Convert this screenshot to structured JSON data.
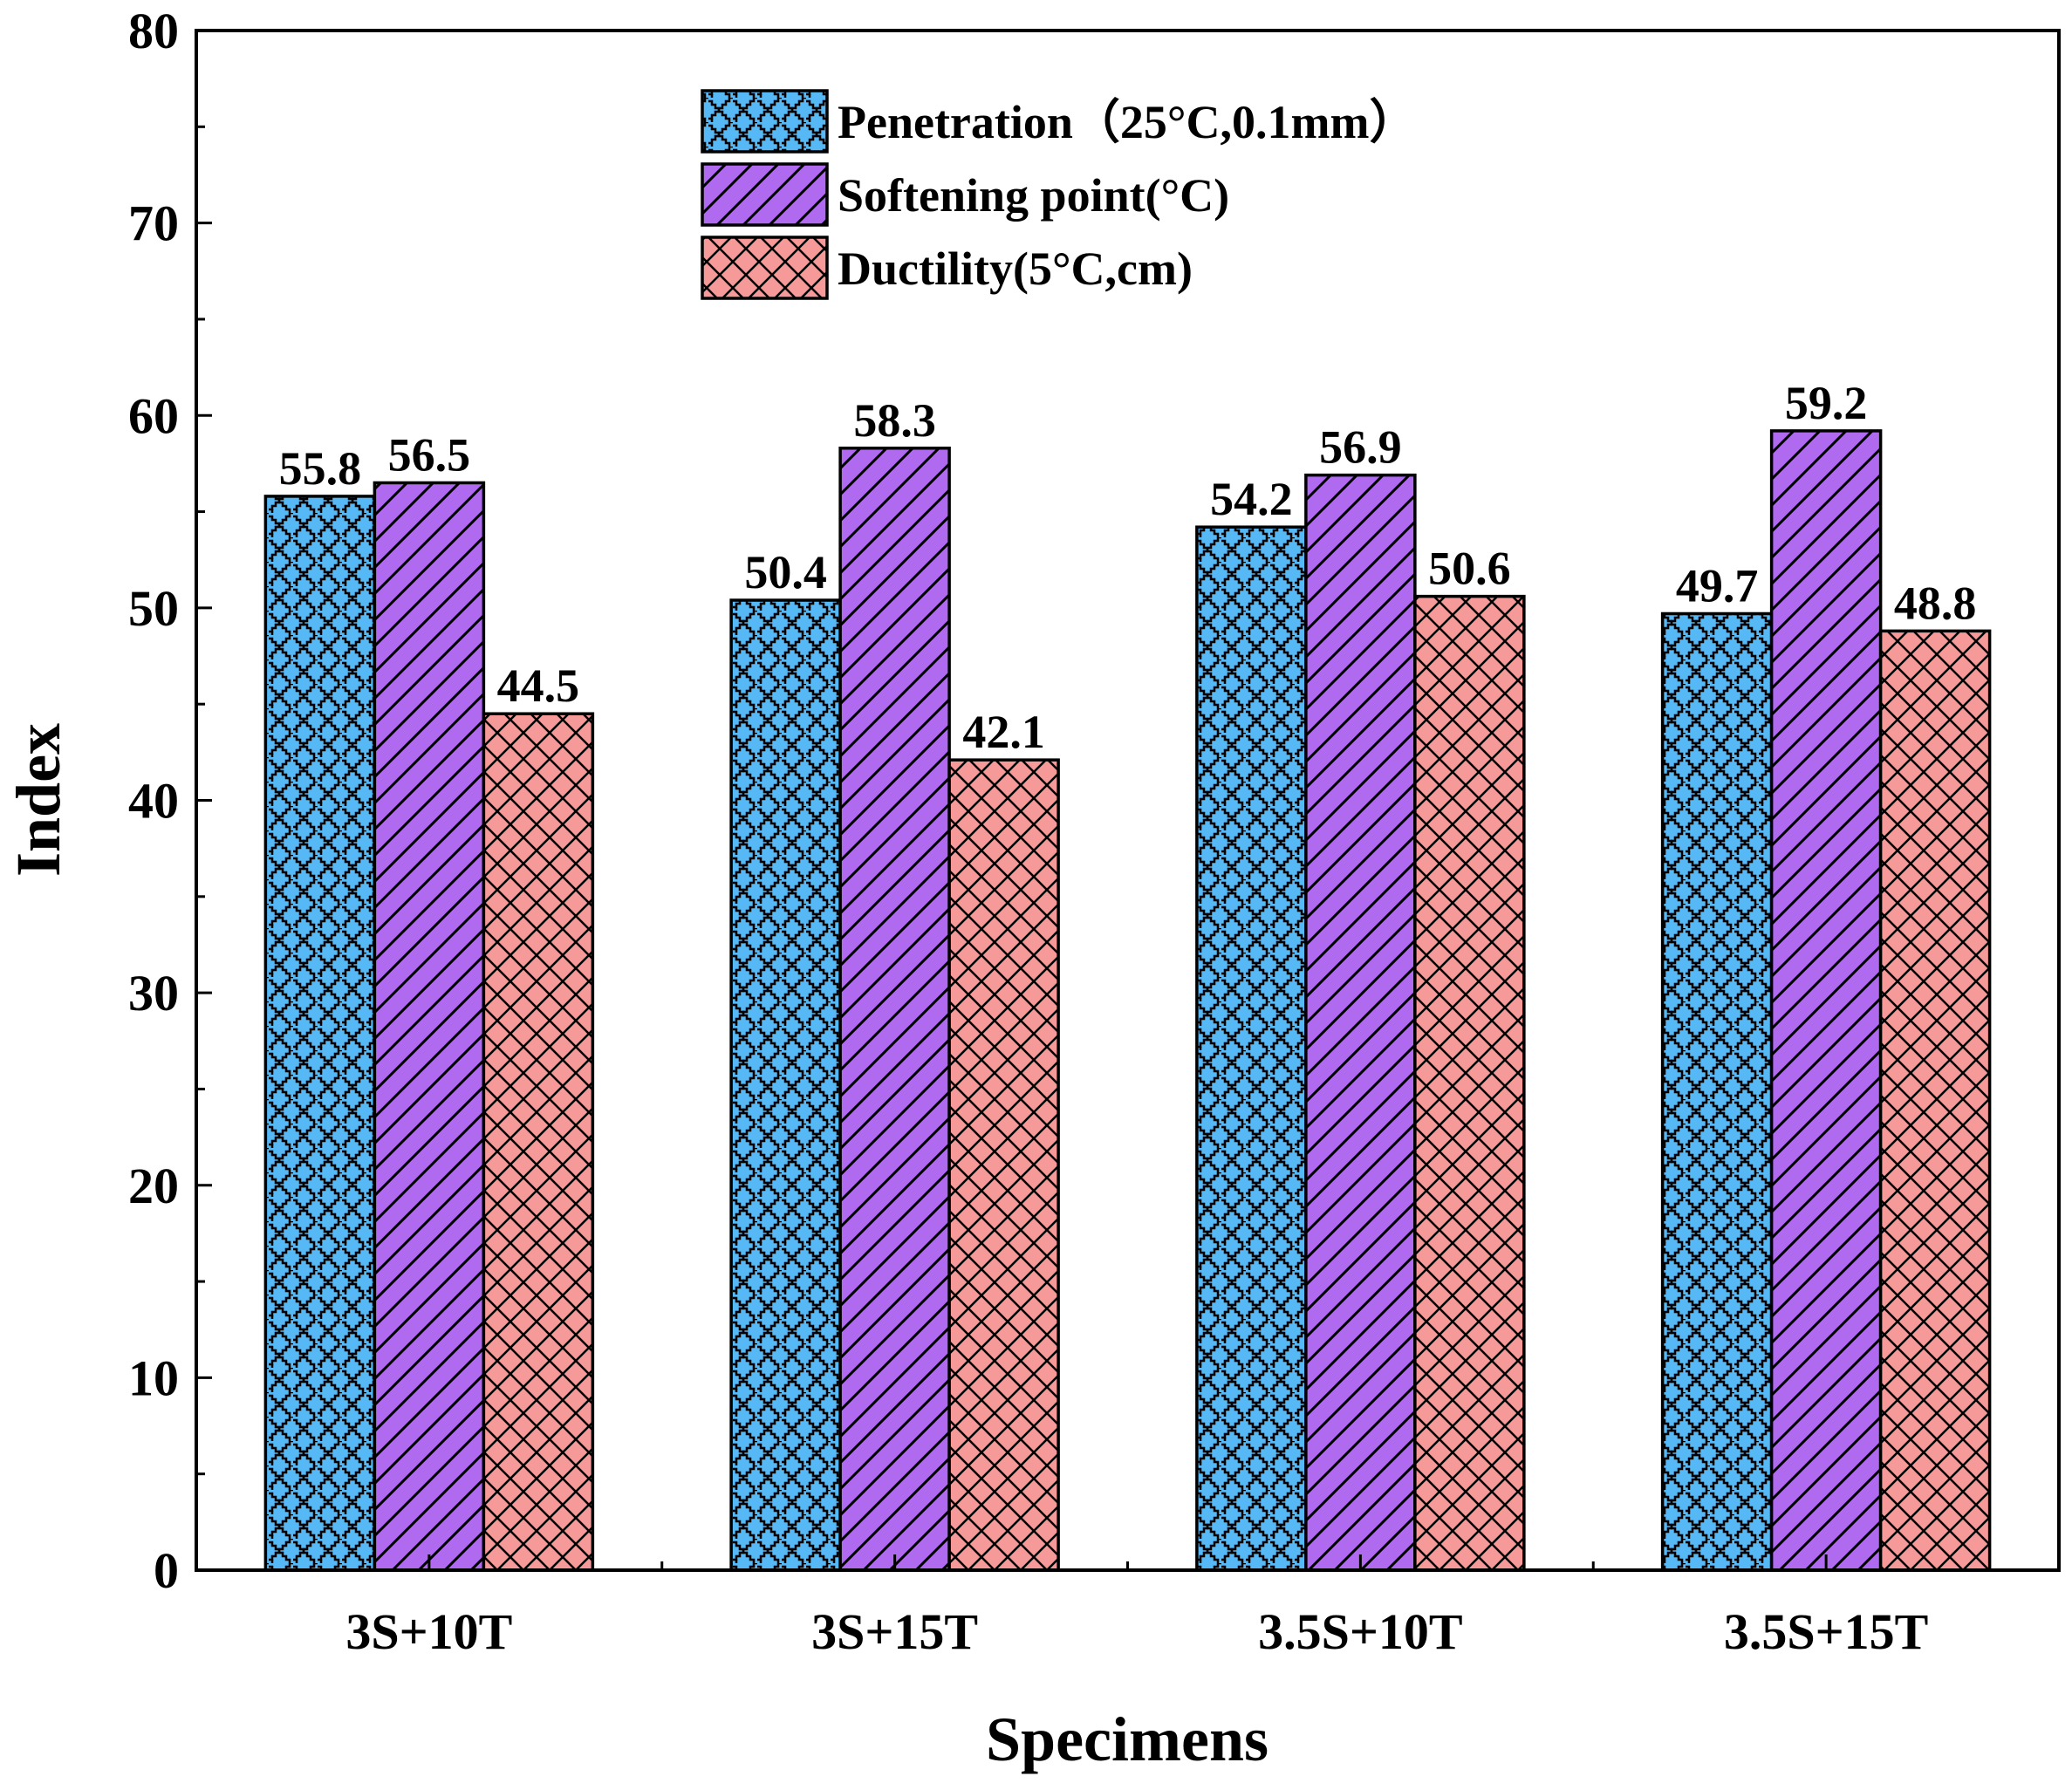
{
  "chart_data": {
    "type": "bar",
    "title": "",
    "xlabel": "Specimens",
    "ylabel": "Index",
    "ylim": [
      0,
      80
    ],
    "yticks": [
      0,
      10,
      20,
      30,
      40,
      50,
      60,
      70,
      80
    ],
    "categories": [
      "3S+10T",
      "3S+15T",
      "3.5S+10T",
      "3.5S+15T"
    ],
    "series": [
      {
        "name": "Penetration（25°C,0.1mm）",
        "color": "#56b8f5",
        "pattern": "zigzag",
        "values": [
          55.8,
          50.4,
          54.2,
          49.7
        ]
      },
      {
        "name": "Softening point(°C)",
        "color": "#b06af0",
        "pattern": "diagonal",
        "values": [
          56.5,
          58.3,
          56.9,
          59.2
        ]
      },
      {
        "name": "Ductility(5°C,cm)",
        "color": "#f59a98",
        "pattern": "crosshatch",
        "values": [
          44.5,
          42.1,
          50.6,
          48.8
        ]
      }
    ],
    "value_labels": [
      [
        "55.8",
        "50.4",
        "54.2",
        "49.7"
      ],
      [
        "56.5",
        "58.3",
        "56.9",
        "59.2"
      ],
      [
        "44.5",
        "42.1",
        "50.6",
        "48.8"
      ]
    ],
    "legend_position": "top-center",
    "grid": false
  }
}
